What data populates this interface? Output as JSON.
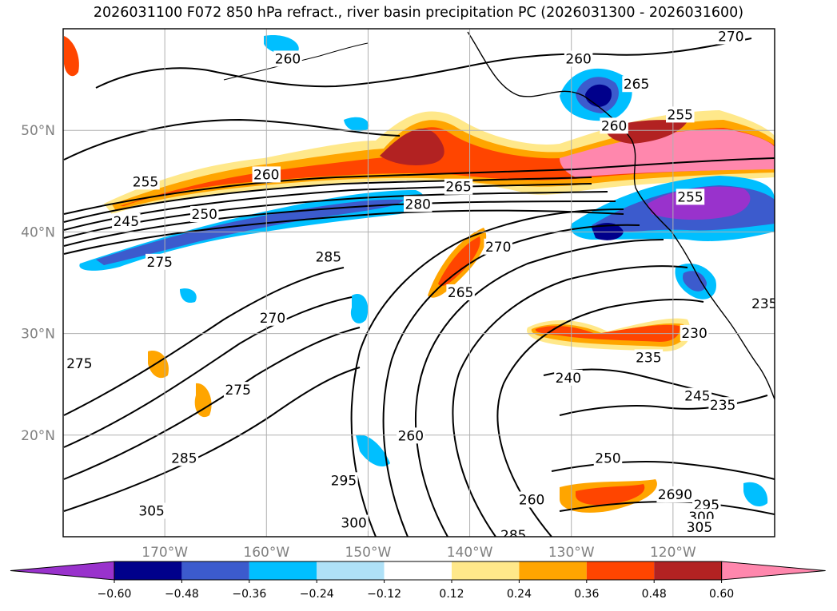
{
  "title": "2026031100 F072 850 hPa refract., river basin precipitation PC (2026031300 - 2026031600)",
  "map": {
    "projection": "equirectangular",
    "lon_range": [
      -180,
      -110
    ],
    "lat_range": [
      10,
      60
    ],
    "lat_ticks": [
      {
        "value": 50,
        "label": "50°N"
      },
      {
        "value": 40,
        "label": "40°N"
      },
      {
        "value": 30,
        "label": "30°N"
      },
      {
        "value": 20,
        "label": "20°N"
      }
    ],
    "lon_ticks": [
      {
        "value": -170,
        "label": "170°W"
      },
      {
        "value": -160,
        "label": "160°W"
      },
      {
        "value": -150,
        "label": "150°W"
      },
      {
        "value": -140,
        "label": "140°W"
      },
      {
        "value": -130,
        "label": "130°W"
      },
      {
        "value": -120,
        "label": "120°W"
      }
    ],
    "grid": true,
    "contour_field": "850 hPa refractivity",
    "contour_labels": [
      {
        "text": "270",
        "lon": -114.3,
        "lat": 59.1
      },
      {
        "text": "260",
        "lon": -157.9,
        "lat": 56.9
      },
      {
        "text": "260",
        "lon": -129.3,
        "lat": 56.9
      },
      {
        "text": "265",
        "lon": -123.6,
        "lat": 54.4
      },
      {
        "text": "260",
        "lon": -125.8,
        "lat": 50.3
      },
      {
        "text": "255",
        "lon": -119.3,
        "lat": 51.4
      },
      {
        "text": "260",
        "lon": -160.0,
        "lat": 45.5
      },
      {
        "text": "255",
        "lon": -171.9,
        "lat": 44.8
      },
      {
        "text": "265",
        "lon": -141.1,
        "lat": 44.3
      },
      {
        "text": "280",
        "lon": -145.1,
        "lat": 42.6
      },
      {
        "text": "250",
        "lon": -166.1,
        "lat": 41.6
      },
      {
        "text": "245",
        "lon": -173.8,
        "lat": 40.9
      },
      {
        "text": "255",
        "lon": -118.3,
        "lat": 43.3
      },
      {
        "text": "275",
        "lon": -170.5,
        "lat": 36.9
      },
      {
        "text": "285",
        "lon": -153.9,
        "lat": 37.4
      },
      {
        "text": "270",
        "lon": -137.2,
        "lat": 38.4
      },
      {
        "text": "265",
        "lon": -140.9,
        "lat": 33.9
      },
      {
        "text": "270",
        "lon": -159.4,
        "lat": 31.4
      },
      {
        "text": "235",
        "lon": -111.0,
        "lat": 32.8
      },
      {
        "text": "230",
        "lon": -117.9,
        "lat": 29.9
      },
      {
        "text": "235",
        "lon": -122.4,
        "lat": 27.5
      },
      {
        "text": "240",
        "lon": -130.3,
        "lat": 25.5
      },
      {
        "text": "275",
        "lon": -178.4,
        "lat": 26.9
      },
      {
        "text": "275",
        "lon": -162.8,
        "lat": 24.3
      },
      {
        "text": "245",
        "lon": -117.6,
        "lat": 23.7
      },
      {
        "text": "235",
        "lon": -115.1,
        "lat": 22.8
      },
      {
        "text": "260",
        "lon": -145.8,
        "lat": 19.8
      },
      {
        "text": "285",
        "lon": -168.1,
        "lat": 17.6
      },
      {
        "text": "250",
        "lon": -126.4,
        "lat": 17.6
      },
      {
        "text": "295",
        "lon": -152.4,
        "lat": 15.4
      },
      {
        "text": "260",
        "lon": -133.9,
        "lat": 13.5
      },
      {
        "text": "2690",
        "lon": -119.8,
        "lat": 14.0
      },
      {
        "text": "295",
        "lon": -116.7,
        "lat": 13.0
      },
      {
        "text": "300",
        "lon": -117.2,
        "lat": 11.8
      },
      {
        "text": "305",
        "lon": -171.3,
        "lat": 12.4
      },
      {
        "text": "300",
        "lon": -151.4,
        "lat": 11.2
      },
      {
        "text": "305",
        "lon": -117.4,
        "lat": 10.8
      },
      {
        "text": "285",
        "lon": -135.7,
        "lat": 10.0
      }
    ]
  },
  "colorbar": {
    "field": "river basin precipitation PC",
    "extend": "both",
    "bins": [
      {
        "color": "#9932cc"
      },
      {
        "color": "#00008b"
      },
      {
        "color": "#3c5bcd"
      },
      {
        "color": "#00bfff"
      },
      {
        "color": "#afe1f7"
      },
      {
        "color": "#ffffff"
      },
      {
        "color": "#ffe88a"
      },
      {
        "color": "#ffa500"
      },
      {
        "color": "#ff4500"
      },
      {
        "color": "#b22222"
      },
      {
        "color": "#ff87ad"
      }
    ],
    "tick_labels": [
      "−0.60",
      "−0.48",
      "−0.36",
      "−0.24",
      "−0.12",
      "0.12",
      "0.24",
      "0.36",
      "0.48",
      "0.60"
    ]
  }
}
